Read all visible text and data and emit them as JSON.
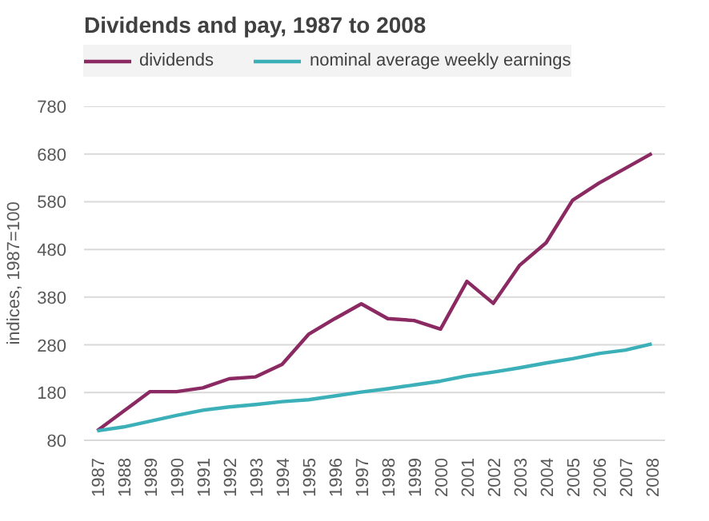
{
  "chart_data": {
    "type": "line",
    "title": "Dividends and pay, 1987 to 2008",
    "ylabel": "indices, 1987=100",
    "categories": [
      "1987",
      "1988",
      "1989",
      "1990",
      "1991",
      "1992",
      "1993",
      "1994",
      "1995",
      "1996",
      "1997",
      "1998",
      "1999",
      "2000",
      "2001",
      "2002",
      "2003",
      "2004",
      "2005",
      "2006",
      "2007",
      "2008"
    ],
    "series": [
      {
        "name": "dividends",
        "color": "#8b2a62",
        "values": [
          100,
          141,
          182,
          182,
          190,
          209,
          213,
          239,
          302,
          335,
          366,
          335,
          331,
          313,
          413,
          367,
          447,
          494,
          583,
          619,
          650,
          681
        ]
      },
      {
        "name": "nominal average weekly earnings",
        "color": "#3bb0b8",
        "values": [
          100,
          108,
          120,
          132,
          143,
          150,
          155,
          161,
          165,
          173,
          181,
          188,
          196,
          204,
          215,
          223,
          232,
          242,
          251,
          262,
          269,
          282
        ]
      }
    ],
    "ylim": [
      80,
      780
    ],
    "yticks": [
      80,
      180,
      280,
      380,
      480,
      580,
      680,
      780
    ],
    "grid": "y",
    "legend": "top",
    "line_style": "solid",
    "marker": "none"
  }
}
